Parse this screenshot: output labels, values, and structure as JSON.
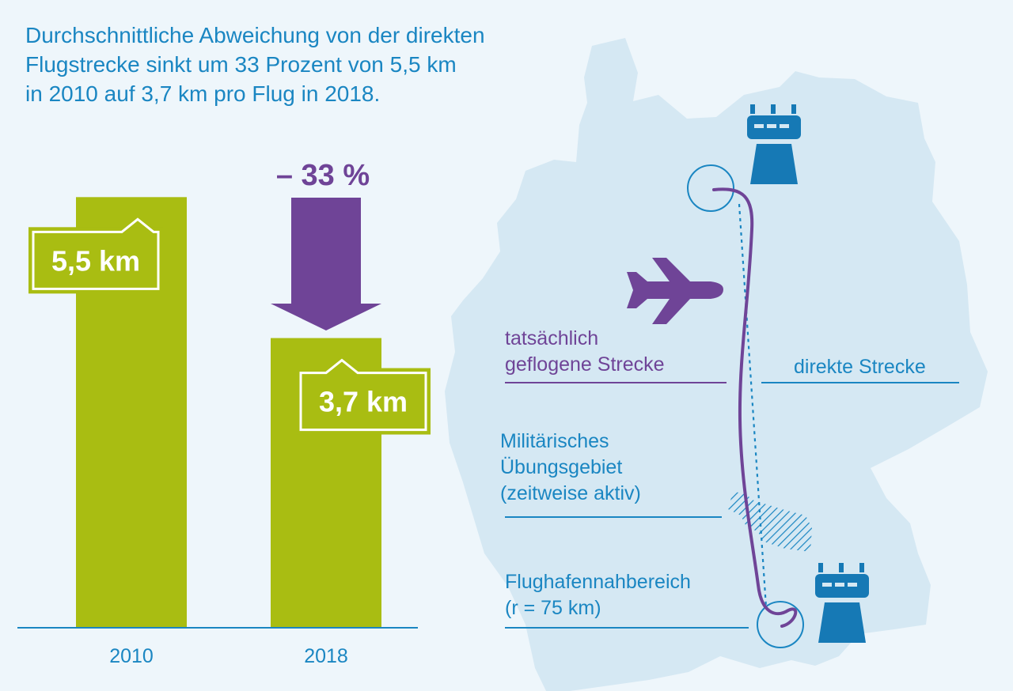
{
  "headline": {
    "line1": "Durchschnittliche Abweichung von der direkten",
    "line2": "Flugstrecke sinkt um 33 Prozent von 5,5 km",
    "line3": "in 2010 auf 3,7 km pro Flug in 2018."
  },
  "colors": {
    "bar": "#a9bd12",
    "accent_purple": "#6f4497",
    "accent_blue": "#1a86c2",
    "tower_blue": "#1679b5",
    "map": "#d5e8f3",
    "background": "#eef6fb"
  },
  "chart_data": {
    "type": "bar",
    "categories": [
      "2010",
      "2018"
    ],
    "values": [
      5.5,
      3.7
    ],
    "value_labels": [
      "5,5 km",
      "3,7 km"
    ],
    "ylim": [
      0,
      6.2
    ],
    "title": "",
    "xlabel": "",
    "ylabel": "",
    "grid": false,
    "change_label": "– 33 %"
  },
  "map": {
    "actual_route_label": [
      "tatsächlich",
      "geflogene Strecke"
    ],
    "direct_route_label": "direkte Strecke",
    "military_area_label": [
      "Militärisches",
      "Übungsgebiet",
      "(zeitweise aktiv)"
    ],
    "airport_area_label": [
      "Flughafennahbereich",
      "(r = 75 km)"
    ],
    "icons": [
      "control-tower-icon",
      "airplane-icon",
      "control-tower-icon"
    ]
  }
}
